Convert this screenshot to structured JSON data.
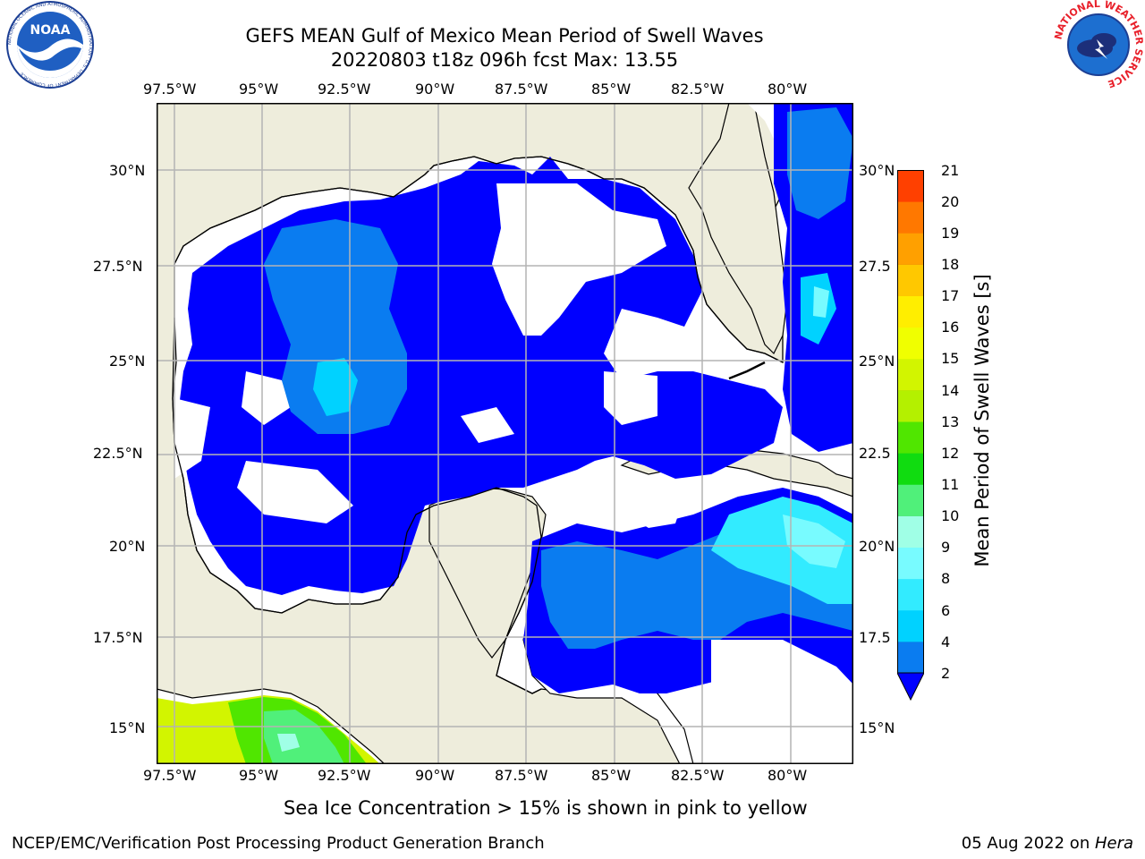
{
  "header": {
    "title_line1": "GEFS MEAN Gulf of Mexico Mean Period of Swell Waves",
    "title_line2": "20220803 t18z 096h fcst   Max: 13.55"
  },
  "logos": {
    "left_text": "NOAA",
    "left_ring_text": "NATIONAL OCEANIC AND ATMOSPHERIC ADMINISTRATION · U.S. DEPARTMENT OF COMMERCE",
    "right_ring_text": "NATIONAL WEATHER SERVICE"
  },
  "map": {
    "lon_labels": [
      "97.5°W",
      "95°W",
      "92.5°W",
      "90°W",
      "87.5°W",
      "85°W",
      "82.5°W",
      "80°W"
    ],
    "lat_labels_left": [
      "30°N",
      "27.5°N",
      "25°N",
      "22.5°N",
      "20°N",
      "17.5°N",
      "15°N"
    ],
    "lat_labels_right": [
      "30°N",
      "27.5",
      "25°N",
      "22.5",
      "20°N",
      "17.5",
      "15°N"
    ],
    "land_color": "#eeeddc",
    "ocean_color": "#ffffff",
    "grid_color": "#b4b4b4"
  },
  "colorbar": {
    "label": "Mean Period of Swell Waves [s]",
    "ticks": [
      "2",
      "4",
      "6",
      "8",
      "9",
      "10",
      "11",
      "12",
      "13",
      "14",
      "15",
      "16",
      "17",
      "18",
      "19",
      "20",
      "21"
    ],
    "colors": [
      "#0a7cf0",
      "#00d2ff",
      "#32ebff",
      "#78fbff",
      "#a0ffe6",
      "#50f07a",
      "#10dc10",
      "#50e600",
      "#b4f000",
      "#d2f500",
      "#f0ff00",
      "#ffee00",
      "#ffc800",
      "#ffa000",
      "#ff7800",
      "#ff4000",
      "#ff1000"
    ],
    "extend_color": "#0000ff"
  },
  "note": "Sea Ice Concentration > 15% is shown in pink to yellow",
  "footer": {
    "left": "NCEP/EMC/Verification Post Processing Product Generation Branch",
    "date": "05 Aug 2022 on ",
    "host": "Hera"
  }
}
